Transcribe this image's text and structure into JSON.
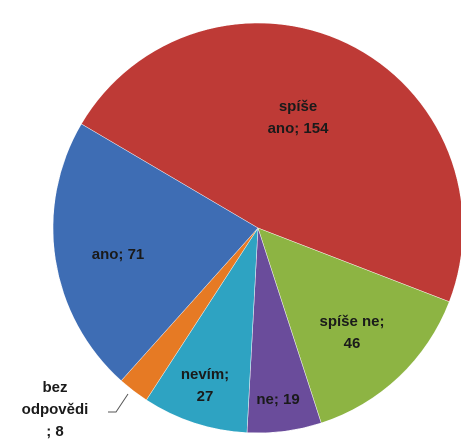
{
  "chart_data": {
    "type": "pie",
    "values": [
      154,
      46,
      19,
      27,
      8,
      71
    ],
    "value_labels": [
      [
        "spíše",
        "ano; 154"
      ],
      [
        "spíše ne;",
        "46"
      ],
      [
        "ne; 19"
      ],
      [
        "nevím;",
        "27"
      ],
      [
        "bez",
        "odpovědi",
        "; 8"
      ],
      [
        "ano; 71"
      ]
    ],
    "colors": [
      "#be3a36",
      "#8db443",
      "#6a4c9b",
      "#2ea3c2",
      "#e67a24",
      "#3e6db4"
    ]
  }
}
